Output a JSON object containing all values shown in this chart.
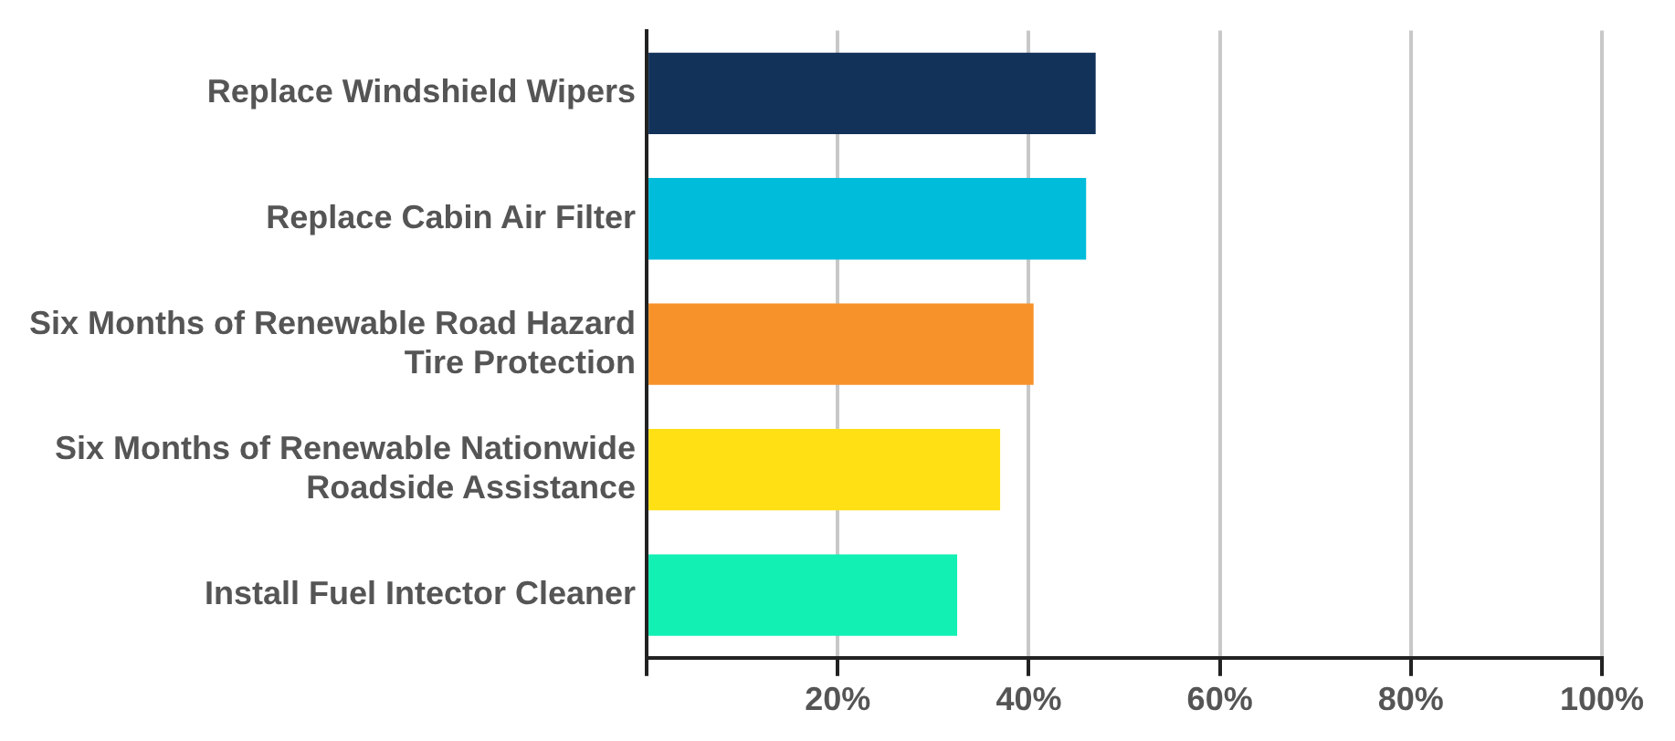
{
  "chart_data": {
    "type": "bar",
    "orientation": "horizontal",
    "categories": [
      "Replace Windshield Wipers",
      "Replace Cabin Air Filter",
      "Six Months of Renewable Road Hazard Tire Protection",
      "Six Months of Renewable Nationwide Roadside Assistance",
      "Install Fuel Intector Cleaner"
    ],
    "values": [
      47,
      46,
      40.5,
      37,
      32.5
    ],
    "colors": [
      "#12325a",
      "#00bcdb",
      "#f7922a",
      "#ffe014",
      "#12f0b4"
    ],
    "xlim": [
      0,
      100
    ],
    "xticks": [
      {
        "value": 0,
        "label": null
      },
      {
        "value": 20,
        "label": "20%"
      },
      {
        "value": 40,
        "label": "40%"
      },
      {
        "value": 60,
        "label": "60%"
      },
      {
        "value": 80,
        "label": "80%"
      },
      {
        "value": 100,
        "label": "100%"
      }
    ],
    "grid": "x",
    "legend": false
  }
}
